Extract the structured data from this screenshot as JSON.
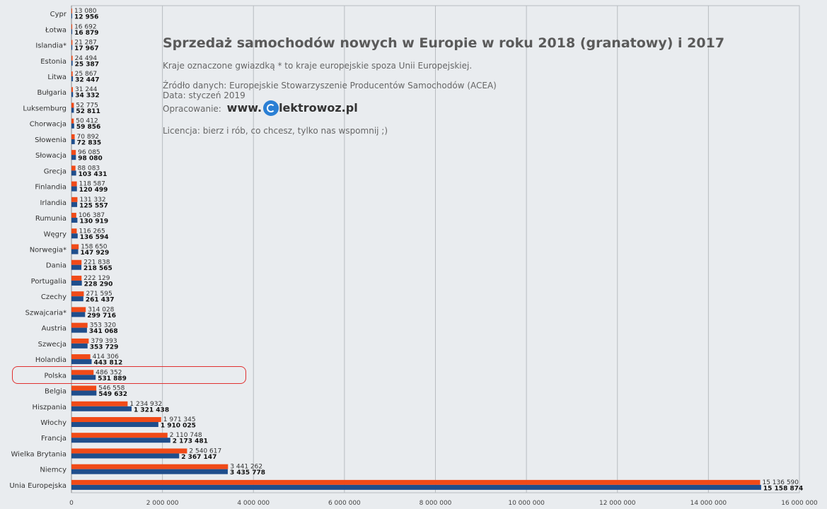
{
  "chart_data": {
    "type": "bar",
    "orientation": "horizontal",
    "title": "Sprzedaż samochodów nowych w Europie w roku 2018 (granatowy) i 2017",
    "notes": [
      "Kraje oznaczone gwiazdką * to kraje europejskie spoza Unii Europejskiej.",
      "Źródło danych: Europejskie Stowarzyszenie Producentów Samochodów (ACEA)",
      "Data: styczeń 2019",
      "Opracowanie:",
      "Licencja: bierz i rób, co chcesz, tylko nas wspomnij ;)"
    ],
    "brand_prefix": "www.",
    "brand_name": "lektrowoz.pl",
    "xlim": [
      0,
      16000000
    ],
    "x_ticks": [
      0,
      2000000,
      4000000,
      6000000,
      8000000,
      10000000,
      12000000,
      14000000,
      16000000
    ],
    "x_tick_labels": [
      "0",
      "2 000 000",
      "4 000 000",
      "6 000 000",
      "8 000 000",
      "10 000 000",
      "12 000 000",
      "14 000 000",
      "16 000 000"
    ],
    "grid": true,
    "highlighted_category": "Polska",
    "categories": [
      "Cypr",
      "Łotwa",
      "Islandia*",
      "Estonia",
      "Litwa",
      "Bułgaria",
      "Luksemburg",
      "Chorwacja",
      "Słowenia",
      "Słowacja",
      "Grecja",
      "Finlandia",
      "Irlandia",
      "Rumunia",
      "Węgry",
      "Norwegia*",
      "Dania",
      "Portugalia",
      "Czechy",
      "Szwajcaria*",
      "Austria",
      "Szwecja",
      "Holandia",
      "Polska",
      "Belgia",
      "Hiszpania",
      "Włochy",
      "Francja",
      "Wielka Brytania",
      "Niemcy",
      "Unia Europejska"
    ],
    "series": [
      {
        "year": "2017",
        "color": "#f04a18",
        "values": [
          13080,
          16692,
          21287,
          24494,
          25867,
          31244,
          52775,
          50412,
          70892,
          96085,
          88083,
          118587,
          131332,
          106387,
          116265,
          158650,
          221838,
          222129,
          271595,
          314028,
          353320,
          379393,
          414306,
          486352,
          546558,
          1234932,
          1971345,
          2110748,
          2540617,
          3441262,
          15136590
        ],
        "labels": [
          "13 080",
          "16 692",
          "21 287",
          "24 494",
          "25 867",
          "31 244",
          "52 775",
          "50 412",
          "70 892",
          "96 085",
          "88 083",
          "118 587",
          "131 332",
          "106 387",
          "116 265",
          "158 650",
          "221 838",
          "222 129",
          "271 595",
          "314 028",
          "353 320",
          "379 393",
          "414 306",
          "486 352",
          "546 558",
          "1 234 932",
          "1 971 345",
          "2 110 748",
          "2 540 617",
          "3 441 262",
          "15 136 590"
        ]
      },
      {
        "year": "2018",
        "color": "#1f4e8c",
        "values": [
          12956,
          16879,
          17967,
          25387,
          32447,
          34332,
          52811,
          59856,
          72835,
          98080,
          103431,
          120499,
          125557,
          130919,
          136594,
          147929,
          218565,
          228290,
          261437,
          299716,
          341068,
          353729,
          443812,
          531889,
          549632,
          1321438,
          1910025,
          2173481,
          2367147,
          3435778,
          15158874
        ],
        "labels": [
          "12 956",
          "16 879",
          "17 967",
          "25 387",
          "32 447",
          "34 332",
          "52 811",
          "59 856",
          "72 835",
          "98 080",
          "103 431",
          "120 499",
          "125 557",
          "130 919",
          "136 594",
          "147 929",
          "218 565",
          "228 290",
          "261 437",
          "299 716",
          "341 068",
          "353 729",
          "443 812",
          "531 889",
          "549 632",
          "1 321 438",
          "1 910 025",
          "2 173 481",
          "2 367 147",
          "3 435 778",
          "15 158 874"
        ]
      }
    ]
  }
}
